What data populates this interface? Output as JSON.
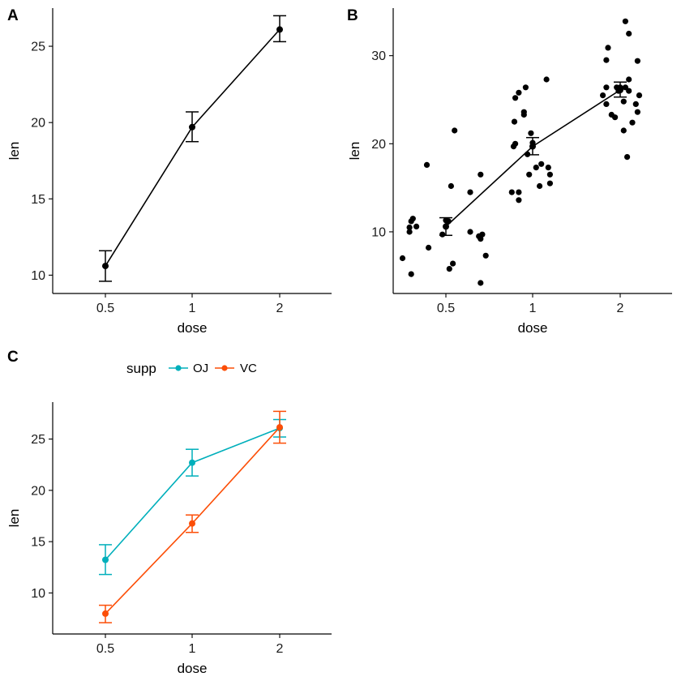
{
  "figure": {
    "panel_tags": [
      "A",
      "B",
      "C"
    ]
  },
  "chart_data": [
    {
      "panel": "A",
      "type": "line",
      "xlabel": "dose",
      "ylabel": "len",
      "categories": [
        "0.5",
        "1",
        "2"
      ],
      "ylim": [
        8.8,
        27.5
      ],
      "yticks": [
        10,
        15,
        20,
        25
      ],
      "series": [
        {
          "color": "#000000",
          "values": [
            10.6,
            19.7,
            26.1
          ],
          "err_low": [
            9.6,
            18.75,
            25.3
          ],
          "err_high": [
            11.6,
            20.7,
            27.0
          ]
        }
      ]
    },
    {
      "panel": "B",
      "type": "scatter",
      "xlabel": "dose",
      "ylabel": "len",
      "categories": [
        "0.5",
        "1",
        "2"
      ],
      "ylim": [
        3.0,
        35.4
      ],
      "yticks": [
        10,
        20,
        30
      ],
      "points": [
        {
          "x": 0.28,
          "y": 14.5
        },
        {
          "x": 0.4,
          "y": 16.5
        },
        {
          "x": 0.78,
          "y": 17.6
        },
        {
          "x": 1.1,
          "y": 21.5
        },
        {
          "x": 1.06,
          "y": 15.2
        },
        {
          "x": 0.28,
          "y": 10.0
        },
        {
          "x": 0.42,
          "y": 9.7
        },
        {
          "x": 0.38,
          "y": 9.5
        },
        {
          "x": 0.4,
          "y": 9.2
        },
        {
          "x": 0.58,
          "y": 10.0
        },
        {
          "x": 0.58,
          "y": 10.5
        },
        {
          "x": 0.6,
          "y": 11.2
        },
        {
          "x": 0.62,
          "y": 11.5
        },
        {
          "x": 1.0,
          "y": 11.3
        },
        {
          "x": 1.03,
          "y": 11.2
        },
        {
          "x": 0.66,
          "y": 10.6
        },
        {
          "x": 0.96,
          "y": 9.7
        },
        {
          "x": 0.8,
          "y": 8.2
        },
        {
          "x": 0.46,
          "y": 7.3
        },
        {
          "x": 0.5,
          "y": 7.0
        },
        {
          "x": 1.08,
          "y": 6.4
        },
        {
          "x": 1.04,
          "y": 5.8
        },
        {
          "x": 0.6,
          "y": 5.2
        },
        {
          "x": 0.4,
          "y": 4.2
        },
        {
          "x": 1.8,
          "y": 25.2
        },
        {
          "x": 1.84,
          "y": 25.8
        },
        {
          "x": 1.92,
          "y": 26.4
        },
        {
          "x": 2.16,
          "y": 27.3
        },
        {
          "x": 1.79,
          "y": 22.5
        },
        {
          "x": 1.9,
          "y": 23.6
        },
        {
          "x": 1.9,
          "y": 23.3
        },
        {
          "x": 1.98,
          "y": 21.2
        },
        {
          "x": 1.78,
          "y": 19.7
        },
        {
          "x": 1.8,
          "y": 20.0
        },
        {
          "x": 1.94,
          "y": 18.8
        },
        {
          "x": 2.0,
          "y": 20.1
        },
        {
          "x": 2.1,
          "y": 17.7
        },
        {
          "x": 2.04,
          "y": 17.3
        },
        {
          "x": 2.18,
          "y": 17.3
        },
        {
          "x": 1.96,
          "y": 16.5
        },
        {
          "x": 2.2,
          "y": 16.5
        },
        {
          "x": 1.76,
          "y": 14.5
        },
        {
          "x": 1.84,
          "y": 14.5
        },
        {
          "x": 1.84,
          "y": 13.6
        },
        {
          "x": 2.08,
          "y": 15.2
        },
        {
          "x": 2.2,
          "y": 15.5
        },
        {
          "x": 3.06,
          "y": 33.9
        },
        {
          "x": 3.1,
          "y": 32.5
        },
        {
          "x": 2.86,
          "y": 30.9
        },
        {
          "x": 2.84,
          "y": 29.5
        },
        {
          "x": 3.2,
          "y": 29.4
        },
        {
          "x": 3.1,
          "y": 27.3
        },
        {
          "x": 2.84,
          "y": 26.4
        },
        {
          "x": 2.96,
          "y": 26.4
        },
        {
          "x": 2.98,
          "y": 26.0
        },
        {
          "x": 3.0,
          "y": 26.4
        },
        {
          "x": 3.06,
          "y": 26.4
        },
        {
          "x": 3.1,
          "y": 26.0
        },
        {
          "x": 2.8,
          "y": 25.5
        },
        {
          "x": 3.22,
          "y": 25.5
        },
        {
          "x": 2.84,
          "y": 24.5
        },
        {
          "x": 3.04,
          "y": 24.8
        },
        {
          "x": 3.18,
          "y": 24.5
        },
        {
          "x": 2.9,
          "y": 23.3
        },
        {
          "x": 2.94,
          "y": 23.0
        },
        {
          "x": 3.2,
          "y": 23.6
        },
        {
          "x": 3.14,
          "y": 22.4
        },
        {
          "x": 3.04,
          "y": 21.5
        },
        {
          "x": 3.08,
          "y": 18.5
        }
      ],
      "series": [
        {
          "color": "#000000",
          "values": [
            10.6,
            19.7,
            26.1
          ],
          "err_low": [
            9.6,
            18.75,
            25.3
          ],
          "err_high": [
            11.6,
            20.7,
            27.0
          ]
        }
      ]
    },
    {
      "panel": "C",
      "type": "line",
      "xlabel": "dose",
      "ylabel": "len",
      "categories": [
        "0.5",
        "1",
        "2"
      ],
      "ylim": [
        6.0,
        28.6
      ],
      "yticks": [
        10,
        15,
        20,
        25
      ],
      "legend": {
        "title": "supp",
        "placement": "top"
      },
      "series": [
        {
          "name": "OJ",
          "color": "#00AFBB",
          "values": [
            13.23,
            22.7,
            26.06
          ],
          "err_low": [
            11.8,
            21.4,
            25.2
          ],
          "err_high": [
            14.7,
            24.0,
            26.9
          ]
        },
        {
          "name": "VC",
          "color": "#FC4E07",
          "values": [
            7.98,
            16.77,
            26.14
          ],
          "err_low": [
            7.1,
            15.9,
            24.6
          ],
          "err_high": [
            8.8,
            17.6,
            27.7
          ]
        }
      ]
    }
  ]
}
